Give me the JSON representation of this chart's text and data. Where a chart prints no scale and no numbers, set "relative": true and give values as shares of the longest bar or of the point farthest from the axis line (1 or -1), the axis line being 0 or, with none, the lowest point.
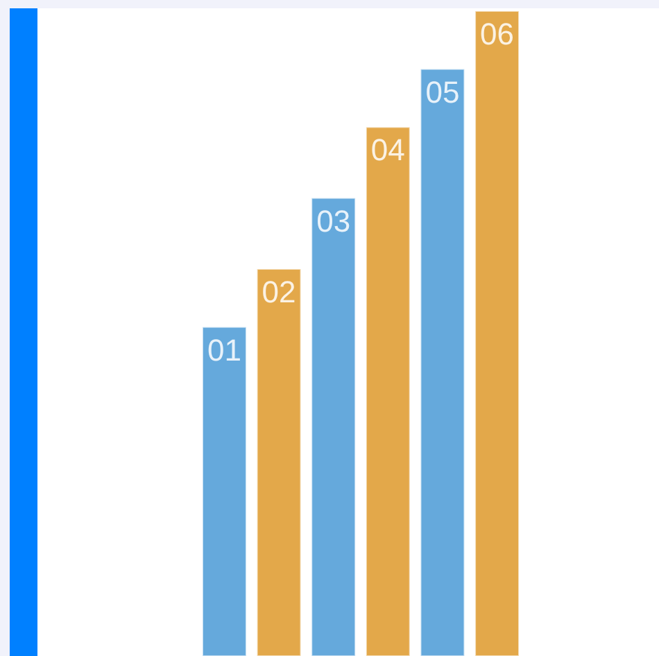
{
  "chart_data": {
    "type": "bar",
    "relative": true,
    "categories": [
      "01",
      "02",
      "03",
      "04",
      "05",
      "06"
    ],
    "values": [
      0.51,
      0.6,
      0.71,
      0.82,
      0.91,
      1
    ],
    "colors": [
      "#65a9dc",
      "#e3a84a",
      "#65a9dc",
      "#e3a84a",
      "#65a9dc",
      "#e3a84a"
    ]
  }
}
